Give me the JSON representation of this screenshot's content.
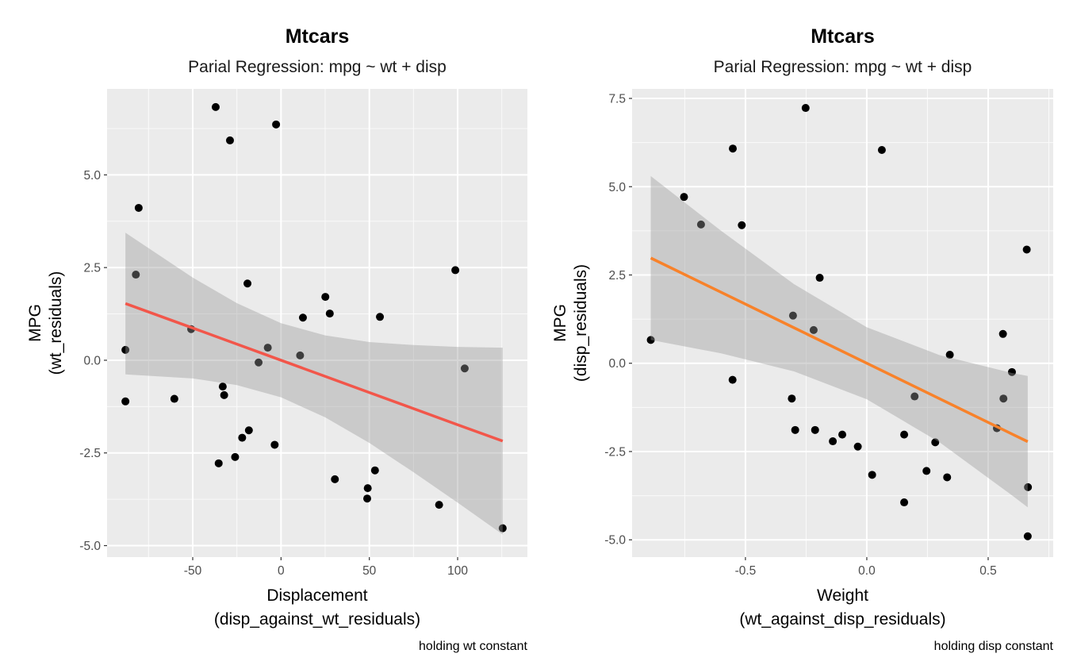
{
  "chart_data": [
    {
      "type": "scatter",
      "title": "Mtcars",
      "subtitle": "Parial Regression: mpg ~ wt + disp",
      "xlabel": [
        "Displacement",
        "(disp_against_wt_residuals)"
      ],
      "ylabel": [
        "MPG",
        "(wt_residuals)"
      ],
      "caption": "holding wt constant",
      "xlim": [
        -98.5,
        139.5
      ],
      "ylim": [
        -5.31,
        7.32
      ],
      "xticks": [
        -50,
        0,
        50,
        100
      ],
      "xtick_labels": [
        "-50",
        "0",
        "50",
        "100"
      ],
      "yticks": [
        -5,
        -2.5,
        0,
        2.5,
        5
      ],
      "ytick_labels": [
        "-5.0",
        "-2.5",
        "0.0",
        "2.5",
        "5.0"
      ],
      "grid": true,
      "line_color": "#f2564a",
      "points": [
        [
          -82.2,
          2.31
        ],
        [
          -88.1,
          0.28
        ],
        [
          -88.1,
          -1.11
        ],
        [
          -60.4,
          -1.04
        ],
        [
          -50.9,
          0.84
        ],
        [
          -33.0,
          -0.71
        ],
        [
          -32.2,
          -0.94
        ],
        [
          -19.0,
          2.07
        ],
        [
          -7.5,
          0.34
        ],
        [
          -12.7,
          -0.06
        ],
        [
          10.8,
          0.13
        ],
        [
          12.4,
          1.15
        ],
        [
          25.1,
          1.71
        ],
        [
          27.6,
          1.26
        ],
        [
          56.0,
          1.17
        ],
        [
          98.7,
          2.43
        ],
        [
          104.0,
          -0.22
        ],
        [
          -18.2,
          -1.89
        ],
        [
          -22.0,
          -2.09
        ],
        [
          -3.6,
          -2.28
        ],
        [
          -26.0,
          -2.61
        ],
        [
          -35.3,
          -2.78
        ],
        [
          30.5,
          -3.21
        ],
        [
          53.2,
          -2.97
        ],
        [
          49.1,
          -3.45
        ],
        [
          48.8,
          -3.73
        ],
        [
          89.5,
          -3.9
        ],
        [
          125.5,
          -4.53
        ],
        [
          -80.6,
          4.11
        ],
        [
          -37.0,
          6.83
        ],
        [
          -28.9,
          5.93
        ],
        [
          -2.8,
          6.36
        ]
      ],
      "fit": {
        "x": [
          -88.1,
          -50,
          -25,
          0,
          25,
          50,
          75,
          100,
          125.5
        ],
        "y": [
          1.53,
          0.87,
          0.435,
          0,
          -0.435,
          -0.87,
          -1.305,
          -1.74,
          -2.18
        ],
        "lower": [
          -0.38,
          -0.49,
          -0.67,
          -1.0,
          -1.54,
          -2.23,
          -3.02,
          -3.84,
          -4.7
        ],
        "upper": [
          3.44,
          2.23,
          1.54,
          1.0,
          0.67,
          0.49,
          0.41,
          0.36,
          0.34
        ]
      }
    },
    {
      "type": "scatter",
      "title": "Mtcars",
      "subtitle": "Parial Regression: mpg ~ wt + disp",
      "xlabel": [
        "Weight",
        "(wt_against_disp_residuals)"
      ],
      "ylabel": [
        "MPG",
        "(disp_residuals)"
      ],
      "caption": "holding disp constant",
      "xlim": [
        -0.967,
        0.768
      ],
      "ylim": [
        -5.49,
        7.77
      ],
      "xticks": [
        -0.5,
        0,
        0.5
      ],
      "xtick_labels": [
        "-0.5",
        "0.0",
        "0.5"
      ],
      "yticks": [
        -5,
        -2.5,
        0,
        2.5,
        5,
        7.5
      ],
      "ytick_labels": [
        "-5.0",
        "-2.5",
        "0.0",
        "2.5",
        "5.0",
        "7.5"
      ],
      "grid": true,
      "line_color": "#f8822a",
      "points": [
        [
          -0.89,
          0.66
        ],
        [
          -0.753,
          4.71
        ],
        [
          -0.683,
          3.93
        ],
        [
          -0.515,
          3.91
        ],
        [
          -0.194,
          2.42
        ],
        [
          -0.304,
          1.35
        ],
        [
          -0.219,
          0.94
        ],
        [
          -0.553,
          -0.47
        ],
        [
          -0.309,
          -1.0
        ],
        [
          -0.295,
          -1.89
        ],
        [
          -0.213,
          -1.89
        ],
        [
          -0.14,
          -2.21
        ],
        [
          -0.101,
          -2.02
        ],
        [
          -0.037,
          -2.36
        ],
        [
          0.022,
          -3.16
        ],
        [
          0.154,
          -3.94
        ],
        [
          0.154,
          -2.02
        ],
        [
          0.197,
          -0.94
        ],
        [
          0.246,
          -3.05
        ],
        [
          0.282,
          -2.24
        ],
        [
          0.331,
          -3.23
        ],
        [
          0.342,
          0.24
        ],
        [
          0.536,
          -1.84
        ],
        [
          0.561,
          0.83
        ],
        [
          0.563,
          -1.0
        ],
        [
          0.598,
          -0.25
        ],
        [
          0.659,
          3.22
        ],
        [
          0.664,
          -3.51
        ],
        [
          0.663,
          -4.9
        ],
        [
          -0.552,
          6.08
        ],
        [
          -0.252,
          7.23
        ],
        [
          0.062,
          6.04
        ]
      ],
      "fit": {
        "x": [
          -0.89,
          -0.6,
          -0.3,
          0,
          0.3,
          0.6,
          0.663
        ],
        "y": [
          2.98,
          2.01,
          1.005,
          0,
          -1.005,
          -2.01,
          -2.22
        ],
        "lower": [
          0.66,
          0.28,
          -0.23,
          -1.02,
          -2.24,
          -3.75,
          -4.08
        ],
        "upper": [
          5.3,
          3.75,
          2.24,
          1.02,
          0.23,
          -0.28,
          -0.36
        ]
      }
    }
  ]
}
